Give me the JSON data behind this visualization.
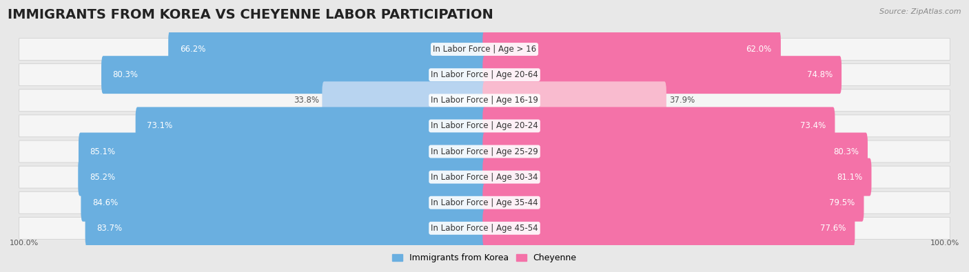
{
  "title": "IMMIGRANTS FROM KOREA VS CHEYENNE LABOR PARTICIPATION",
  "source": "Source: ZipAtlas.com",
  "categories": [
    "In Labor Force | Age > 16",
    "In Labor Force | Age 20-64",
    "In Labor Force | Age 16-19",
    "In Labor Force | Age 20-24",
    "In Labor Force | Age 25-29",
    "In Labor Force | Age 30-34",
    "In Labor Force | Age 35-44",
    "In Labor Force | Age 45-54"
  ],
  "korea_values": [
    66.2,
    80.3,
    33.8,
    73.1,
    85.1,
    85.2,
    84.6,
    83.7
  ],
  "cheyenne_values": [
    62.0,
    74.8,
    37.9,
    73.4,
    80.3,
    81.1,
    79.5,
    77.6
  ],
  "korea_color_strong": "#6aafe0",
  "korea_color_light": "#b8d4f0",
  "cheyenne_color_strong": "#f472a8",
  "cheyenne_color_light": "#f9bbcf",
  "bg_color": "#e8e8e8",
  "row_bg": "#f5f5f5",
  "bar_height": 0.68,
  "max_value": 100.0,
  "legend_korea": "Immigrants from Korea",
  "legend_cheyenne": "Cheyenne",
  "title_fontsize": 14,
  "label_fontsize": 8.5,
  "value_fontsize": 8.5
}
